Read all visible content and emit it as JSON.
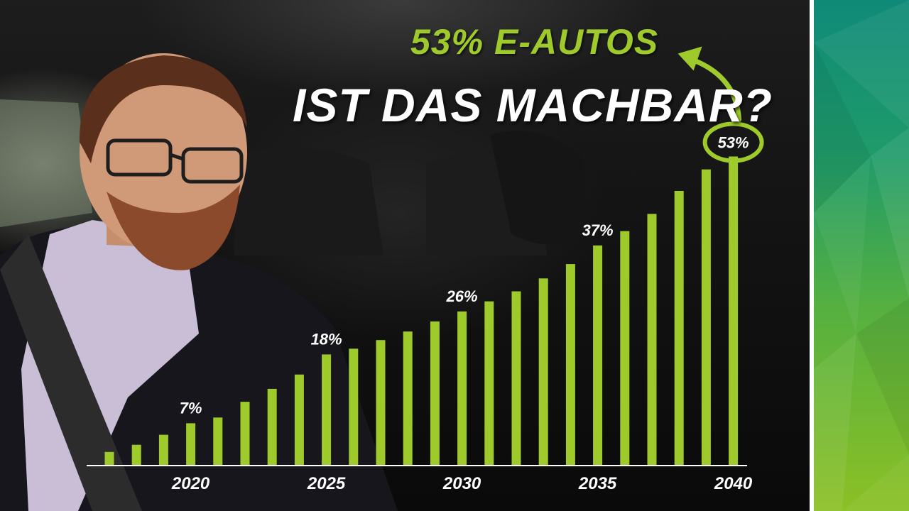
{
  "headline": {
    "subtitle": "53% E-AUTOS",
    "title": "IST DAS MACHBAR?"
  },
  "colors": {
    "bar": "#9ecb2b",
    "accent": "#9ecb2b",
    "text": "#ffffff"
  },
  "chart_data": {
    "type": "bar",
    "title": "",
    "xlabel": "",
    "ylabel": "",
    "x": [
      2017,
      2018,
      2019,
      2020,
      2021,
      2022,
      2023,
      2024,
      2025,
      2026,
      2027,
      2028,
      2029,
      2030,
      2031,
      2032,
      2033,
      2034,
      2035,
      2036,
      2037,
      2038,
      2039,
      2040
    ],
    "values": [
      0.9,
      1.4,
      2.1,
      2.9,
      3.3,
      4.4,
      5.3,
      6.3,
      7.7,
      8.1,
      8.7,
      9.3,
      10.0,
      10.7,
      11.4,
      12.1,
      13.0,
      14.0,
      15.3,
      16.3,
      17.5,
      19.1,
      20.6,
      21.5
    ],
    "data_labels": [
      {
        "x": 2020,
        "text": "7%"
      },
      {
        "x": 2025,
        "text": "18%"
      },
      {
        "x": 2030,
        "text": "26%"
      },
      {
        "x": 2035,
        "text": "37%"
      },
      {
        "x": 2040,
        "text": "53%"
      }
    ],
    "x_ticks": [
      "2020",
      "2025",
      "2030",
      "2035",
      "2040"
    ],
    "ylim": [
      0,
      24
    ],
    "grid": false,
    "highlight": {
      "x": 2040,
      "style": "circled",
      "arrow": "up-left"
    }
  }
}
